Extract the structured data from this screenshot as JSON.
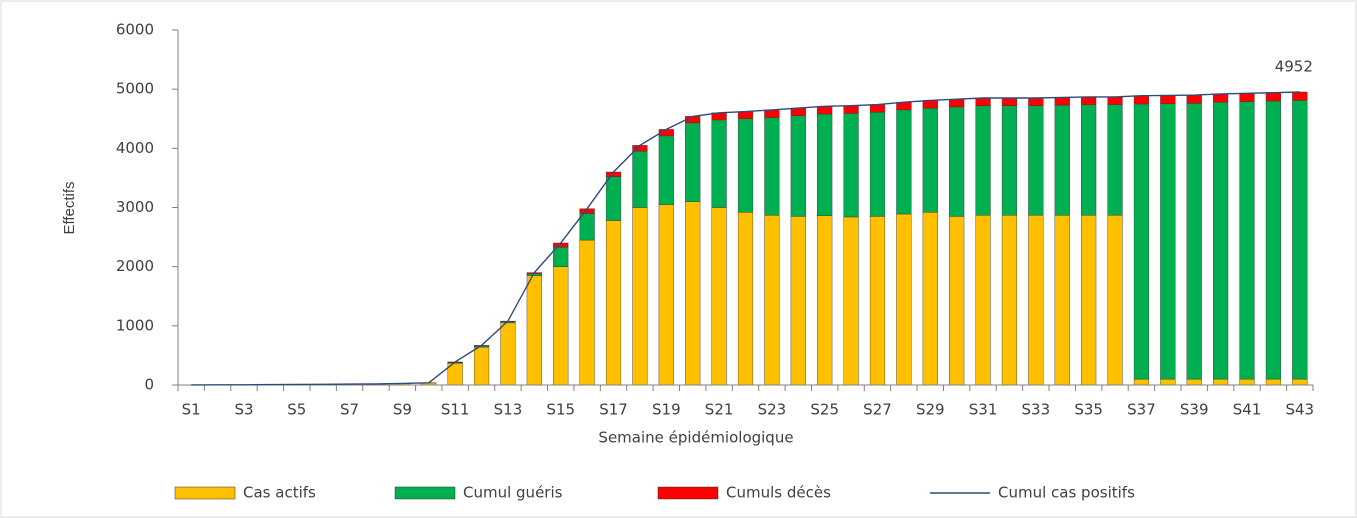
{
  "chart_data": {
    "type": "bar",
    "stacked": true,
    "x_label": "Semaine épidémiologique",
    "y_label": "Effectifs",
    "categories": [
      "S1",
      null,
      "S3",
      null,
      "S5",
      null,
      "S7",
      null,
      "S9",
      null,
      "S11",
      null,
      "S13",
      null,
      "S15",
      null,
      "S17",
      null,
      "S19",
      null,
      "S21",
      null,
      "S23",
      null,
      "S25",
      null,
      "S27",
      null,
      "S29",
      null,
      "S31",
      null,
      "S33",
      null,
      "S35",
      null,
      "S37",
      null,
      "S39",
      null,
      "S41",
      null,
      "S43"
    ],
    "series": [
      {
        "name": "Cas actifs",
        "type": "bar",
        "color": "#FFC000",
        "values": [
          2,
          3,
          4,
          6,
          10,
          12,
          15,
          18,
          25,
          35,
          370,
          640,
          1050,
          1850,
          2000,
          2450,
          2780,
          3000,
          3050,
          3100,
          3000,
          2920,
          2870,
          2850,
          2860,
          2840,
          2850,
          2890,
          2920,
          2850,
          2870,
          2870,
          2870,
          2870,
          2870,
          2870,
          100,
          100,
          100,
          100,
          100,
          100,
          100
        ]
      },
      {
        "name": "Cumul guéris",
        "type": "bar",
        "color": "#00B050",
        "values": [
          0,
          0,
          0,
          0,
          0,
          0,
          0,
          0,
          0,
          0,
          10,
          20,
          20,
          30,
          330,
          450,
          740,
          950,
          1160,
          1330,
          1480,
          1580,
          1650,
          1700,
          1720,
          1750,
          1760,
          1760,
          1760,
          1850,
          1850,
          1850,
          1850,
          1860,
          1870,
          1870,
          4650,
          4655,
          4660,
          4680,
          4690,
          4700,
          4710
        ]
      },
      {
        "name": "Cumuls décès",
        "type": "bar",
        "color": "#FF0000",
        "values": [
          0,
          0,
          0,
          0,
          0,
          0,
          0,
          0,
          2,
          3,
          10,
          10,
          10,
          20,
          70,
          80,
          80,
          100,
          110,
          110,
          120,
          120,
          130,
          130,
          130,
          130,
          130,
          130,
          130,
          130,
          130,
          130,
          130,
          130,
          130,
          130,
          140,
          140,
          140,
          140,
          140,
          140,
          142
        ]
      },
      {
        "name": "Cumul cas positifs",
        "type": "line",
        "color": "#2F4A7A",
        "values": [
          2,
          3,
          4,
          6,
          10,
          12,
          15,
          18,
          27,
          38,
          390,
          670,
          1080,
          1900,
          2400,
          2980,
          3600,
          4050,
          4320,
          4540,
          4600,
          4620,
          4650,
          4680,
          4710,
          4720,
          4740,
          4780,
          4810,
          4830,
          4850,
          4850,
          4850,
          4860,
          4870,
          4870,
          4890,
          4895,
          4900,
          4920,
          4930,
          4940,
          4952
        ],
        "value_labels": [
          null,
          null,
          null,
          null,
          null,
          null,
          null,
          null,
          null,
          null,
          null,
          null,
          null,
          null,
          null,
          null,
          null,
          null,
          null,
          null,
          null,
          null,
          null,
          null,
          null,
          null,
          null,
          null,
          null,
          null,
          null,
          null,
          null,
          null,
          null,
          null,
          null,
          null,
          null,
          null,
          null,
          null,
          "4952"
        ]
      }
    ],
    "ylim": [
      0,
      6000
    ],
    "yticks": [
      0,
      1000,
      2000,
      3000,
      4000,
      5000,
      6000
    ],
    "grid": false,
    "legend": "bottom"
  }
}
